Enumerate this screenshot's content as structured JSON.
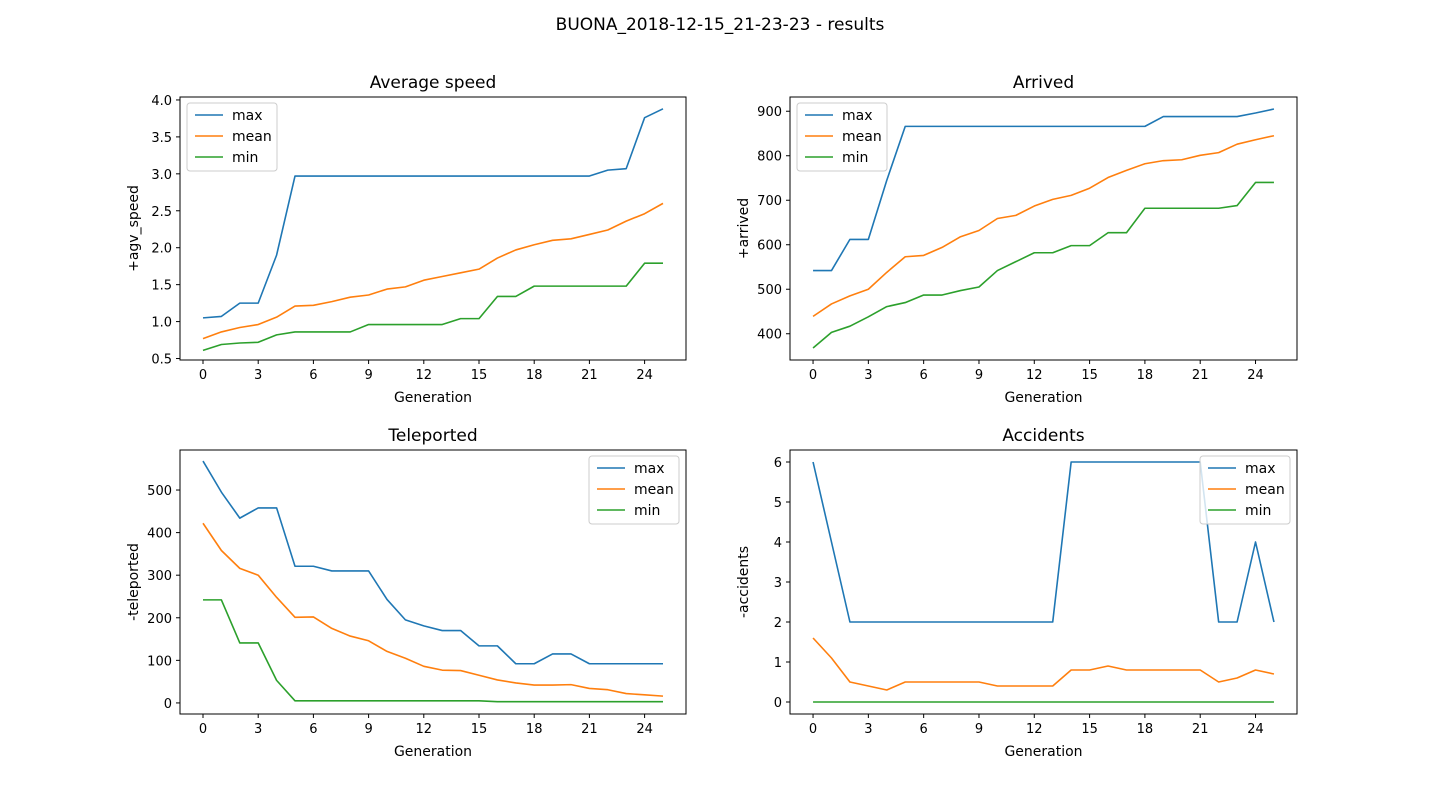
{
  "figure_title": "BUONA_2018-12-15_21-23-23 - results",
  "colors": {
    "max": "#1f77b4",
    "mean": "#ff7f0e",
    "min": "#2ca02c"
  },
  "chart_data": [
    {
      "type": "line",
      "title": "Average speed",
      "xlabel": "Generation",
      "ylabel": "+agv_speed",
      "xlim": [
        -1.25,
        26.25
      ],
      "ylim": [
        0.48,
        4.04
      ],
      "xticks": [
        0,
        3,
        6,
        9,
        12,
        15,
        18,
        21,
        24
      ],
      "xtick_labels": [
        "0",
        "3",
        "6",
        "9",
        "12",
        "15",
        "18",
        "21",
        "24"
      ],
      "yticks": [
        0.5,
        1.0,
        1.5,
        2.0,
        2.5,
        3.0,
        3.5,
        4.0
      ],
      "ytick_labels": [
        "0.5",
        "1.0",
        "1.5",
        "2.0",
        "2.5",
        "3.0",
        "3.5",
        "4.0"
      ],
      "legend_loc": "upper-left",
      "x": [
        0,
        1,
        2,
        3,
        4,
        5,
        6,
        7,
        8,
        9,
        10,
        11,
        12,
        13,
        14,
        15,
        16,
        17,
        18,
        19,
        20,
        21,
        22,
        23,
        24,
        25
      ],
      "series": [
        {
          "name": "max",
          "values": [
            1.05,
            1.07,
            1.25,
            1.25,
            1.9,
            2.97,
            2.97,
            2.97,
            2.97,
            2.97,
            2.97,
            2.97,
            2.97,
            2.97,
            2.97,
            2.97,
            2.97,
            2.97,
            2.97,
            2.97,
            2.97,
            2.97,
            3.05,
            3.07,
            3.76,
            3.88
          ]
        },
        {
          "name": "mean",
          "values": [
            0.77,
            0.86,
            0.92,
            0.96,
            1.06,
            1.21,
            1.22,
            1.27,
            1.33,
            1.36,
            1.44,
            1.47,
            1.56,
            1.61,
            1.66,
            1.71,
            1.86,
            1.97,
            2.04,
            2.1,
            2.12,
            2.18,
            2.24,
            2.36,
            2.46,
            2.6
          ]
        },
        {
          "name": "min",
          "values": [
            0.61,
            0.69,
            0.71,
            0.72,
            0.82,
            0.86,
            0.86,
            0.86,
            0.86,
            0.96,
            0.96,
            0.96,
            0.96,
            0.96,
            1.04,
            1.04,
            1.34,
            1.34,
            1.48,
            1.48,
            1.48,
            1.48,
            1.48,
            1.48,
            1.79,
            1.79
          ]
        }
      ]
    },
    {
      "type": "line",
      "title": "Arrived",
      "xlabel": "Generation",
      "ylabel": "+arrived",
      "xlim": [
        -1.25,
        26.25
      ],
      "ylim": [
        341,
        932
      ],
      "xticks": [
        0,
        3,
        6,
        9,
        12,
        15,
        18,
        21,
        24
      ],
      "xtick_labels": [
        "0",
        "3",
        "6",
        "9",
        "12",
        "15",
        "18",
        "21",
        "24"
      ],
      "yticks": [
        400,
        500,
        600,
        700,
        800,
        900
      ],
      "ytick_labels": [
        "400",
        "500",
        "600",
        "700",
        "800",
        "900"
      ],
      "legend_loc": "upper-left",
      "x": [
        0,
        1,
        2,
        3,
        4,
        5,
        6,
        7,
        8,
        9,
        10,
        11,
        12,
        13,
        14,
        15,
        16,
        17,
        18,
        19,
        20,
        21,
        22,
        23,
        24,
        25
      ],
      "series": [
        {
          "name": "max",
          "values": [
            542,
            542,
            612,
            612,
            745,
            866,
            866,
            866,
            866,
            866,
            866,
            866,
            866,
            866,
            866,
            866,
            866,
            866,
            866,
            888,
            888,
            888,
            888,
            888,
            896,
            905
          ]
        },
        {
          "name": "mean",
          "values": [
            439,
            467,
            485,
            500,
            538,
            573,
            576,
            594,
            618,
            632,
            659,
            666,
            687,
            702,
            711,
            727,
            751,
            767,
            782,
            789,
            791,
            801,
            807,
            826,
            836,
            845
          ]
        },
        {
          "name": "min",
          "values": [
            368,
            403,
            417,
            438,
            461,
            470,
            487,
            487,
            497,
            505,
            542,
            562,
            582,
            582,
            598,
            598,
            627,
            627,
            682,
            682,
            682,
            682,
            682,
            688,
            740,
            740
          ]
        }
      ]
    },
    {
      "type": "line",
      "title": "Teleported",
      "xlabel": "Generation",
      "ylabel": "-teleported",
      "xlim": [
        -1.25,
        26.25
      ],
      "ylim": [
        -26,
        594
      ],
      "xticks": [
        0,
        3,
        6,
        9,
        12,
        15,
        18,
        21,
        24
      ],
      "xtick_labels": [
        "0",
        "3",
        "6",
        "9",
        "12",
        "15",
        "18",
        "21",
        "24"
      ],
      "yticks": [
        0,
        100,
        200,
        300,
        400,
        500
      ],
      "ytick_labels": [
        "0",
        "100",
        "200",
        "300",
        "400",
        "500"
      ],
      "legend_loc": "upper-right",
      "x": [
        0,
        1,
        2,
        3,
        4,
        5,
        6,
        7,
        8,
        9,
        10,
        11,
        12,
        13,
        14,
        15,
        16,
        17,
        18,
        19,
        20,
        21,
        22,
        23,
        24,
        25
      ],
      "series": [
        {
          "name": "max",
          "values": [
            568,
            495,
            434,
            458,
            458,
            321,
            321,
            310,
            310,
            310,
            243,
            195,
            181,
            170,
            170,
            134,
            134,
            92,
            92,
            115,
            115,
            92,
            92,
            92,
            92,
            92
          ]
        },
        {
          "name": "mean",
          "values": [
            422,
            358,
            316,
            300,
            248,
            201,
            202,
            175,
            157,
            146,
            121,
            105,
            86,
            77,
            76,
            65,
            54,
            47,
            42,
            42,
            43,
            34,
            31,
            22,
            19,
            16
          ]
        },
        {
          "name": "min",
          "values": [
            242,
            242,
            141,
            141,
            53,
            5,
            5,
            5,
            5,
            5,
            5,
            5,
            5,
            5,
            5,
            5,
            3,
            3,
            3,
            3,
            3,
            3,
            3,
            3,
            3,
            3
          ]
        }
      ]
    },
    {
      "type": "line",
      "title": "Accidents",
      "xlabel": "Generation",
      "ylabel": "-accidents",
      "xlim": [
        -1.25,
        26.25
      ],
      "ylim": [
        -0.3,
        6.3
      ],
      "xticks": [
        0,
        3,
        6,
        9,
        12,
        15,
        18,
        21,
        24
      ],
      "xtick_labels": [
        "0",
        "3",
        "6",
        "9",
        "12",
        "15",
        "18",
        "21",
        "24"
      ],
      "yticks": [
        0,
        1,
        2,
        3,
        4,
        5,
        6
      ],
      "ytick_labels": [
        "0",
        "1",
        "2",
        "3",
        "4",
        "5",
        "6"
      ],
      "legend_loc": "upper-right",
      "x": [
        0,
        1,
        2,
        3,
        4,
        5,
        6,
        7,
        8,
        9,
        10,
        11,
        12,
        13,
        14,
        15,
        16,
        17,
        18,
        19,
        20,
        21,
        22,
        23,
        24,
        25
      ],
      "series": [
        {
          "name": "max",
          "values": [
            6,
            4,
            2,
            2,
            2,
            2,
            2,
            2,
            2,
            2,
            2,
            2,
            2,
            2,
            6,
            6,
            6,
            6,
            6,
            6,
            6,
            6,
            2,
            2,
            4,
            2
          ]
        },
        {
          "name": "mean",
          "values": [
            1.6,
            1.1,
            0.5,
            0.4,
            0.3,
            0.5,
            0.5,
            0.5,
            0.5,
            0.5,
            0.4,
            0.4,
            0.4,
            0.4,
            0.8,
            0.8,
            0.9,
            0.8,
            0.8,
            0.8,
            0.8,
            0.8,
            0.5,
            0.6,
            0.8,
            0.7
          ]
        },
        {
          "name": "min",
          "values": [
            0,
            0,
            0,
            0,
            0,
            0,
            0,
            0,
            0,
            0,
            0,
            0,
            0,
            0,
            0,
            0,
            0,
            0,
            0,
            0,
            0,
            0,
            0,
            0,
            0,
            0
          ]
        }
      ]
    }
  ]
}
